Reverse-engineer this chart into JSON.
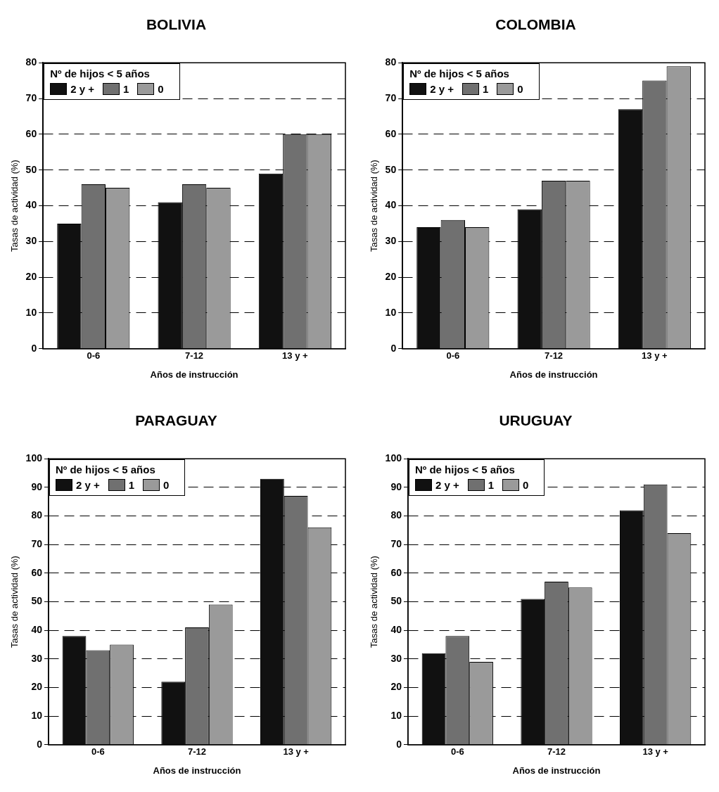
{
  "chart_data": [
    {
      "type": "bar",
      "title": "BOLIVIA",
      "xlabel": "Años de instrucción",
      "ylabel": "Tasas de actividad (%)",
      "legend_title": "Nº de hijos < 5 años",
      "legend": "top left",
      "grid": "y",
      "categories": [
        "0-6",
        "7-12",
        "13 y +"
      ],
      "ylim": [
        0,
        80
      ],
      "yticks": [
        0,
        10,
        20,
        30,
        40,
        50,
        60,
        70,
        80
      ],
      "series": [
        {
          "name": "2 y +",
          "color": "#111111",
          "values": [
            35,
            41,
            49
          ]
        },
        {
          "name": "1",
          "color": "#707070",
          "values": [
            46,
            46,
            60
          ]
        },
        {
          "name": "0",
          "color": "#9a9a9a",
          "values": [
            45,
            45,
            60
          ]
        }
      ]
    },
    {
      "type": "bar",
      "title": "COLOMBIA",
      "xlabel": "Años de instrucción",
      "ylabel": "Tasas de actividad (%)",
      "legend_title": "Nº de hijos < 5 años",
      "legend": "top left",
      "grid": "y",
      "categories": [
        "0-6",
        "7-12",
        "13 y +"
      ],
      "ylim": [
        0,
        80
      ],
      "yticks": [
        0,
        10,
        20,
        30,
        40,
        50,
        60,
        70,
        80
      ],
      "series": [
        {
          "name": "2 y +",
          "color": "#111111",
          "values": [
            34,
            39,
            67
          ]
        },
        {
          "name": "1",
          "color": "#707070",
          "values": [
            36,
            47,
            75
          ]
        },
        {
          "name": "0",
          "color": "#9a9a9a",
          "values": [
            34,
            47,
            79
          ]
        }
      ]
    },
    {
      "type": "bar",
      "title": "PARAGUAY",
      "xlabel": "Años de instrucción",
      "ylabel": "Tasas de actividad (%)",
      "legend_title": "Nº de hijos < 5 años",
      "legend": "top left",
      "grid": "y",
      "categories": [
        "0-6",
        "7-12",
        "13 y +"
      ],
      "ylim": [
        0,
        100
      ],
      "yticks": [
        0,
        10,
        20,
        30,
        40,
        50,
        60,
        70,
        80,
        90,
        100
      ],
      "series": [
        {
          "name": "2 y +",
          "color": "#111111",
          "values": [
            38,
            22,
            93
          ]
        },
        {
          "name": "1",
          "color": "#707070",
          "values": [
            33,
            41,
            87
          ]
        },
        {
          "name": "0",
          "color": "#9a9a9a",
          "values": [
            35,
            49,
            76
          ]
        }
      ]
    },
    {
      "type": "bar",
      "title": "URUGUAY",
      "xlabel": "Años de instrucción",
      "ylabel": "Tasas de actividad (%)",
      "legend_title": "Nº de hijos < 5 años",
      "legend": "top left",
      "grid": "y",
      "categories": [
        "0-6",
        "7-12",
        "13 y +"
      ],
      "ylim": [
        0,
        100
      ],
      "yticks": [
        0,
        10,
        20,
        30,
        40,
        50,
        60,
        70,
        80,
        90,
        100
      ],
      "series": [
        {
          "name": "2 y +",
          "color": "#111111",
          "values": [
            32,
            51,
            82
          ]
        },
        {
          "name": "1",
          "color": "#707070",
          "values": [
            38,
            57,
            91
          ]
        },
        {
          "name": "0",
          "color": "#9a9a9a",
          "values": [
            29,
            55,
            74
          ]
        }
      ]
    }
  ]
}
